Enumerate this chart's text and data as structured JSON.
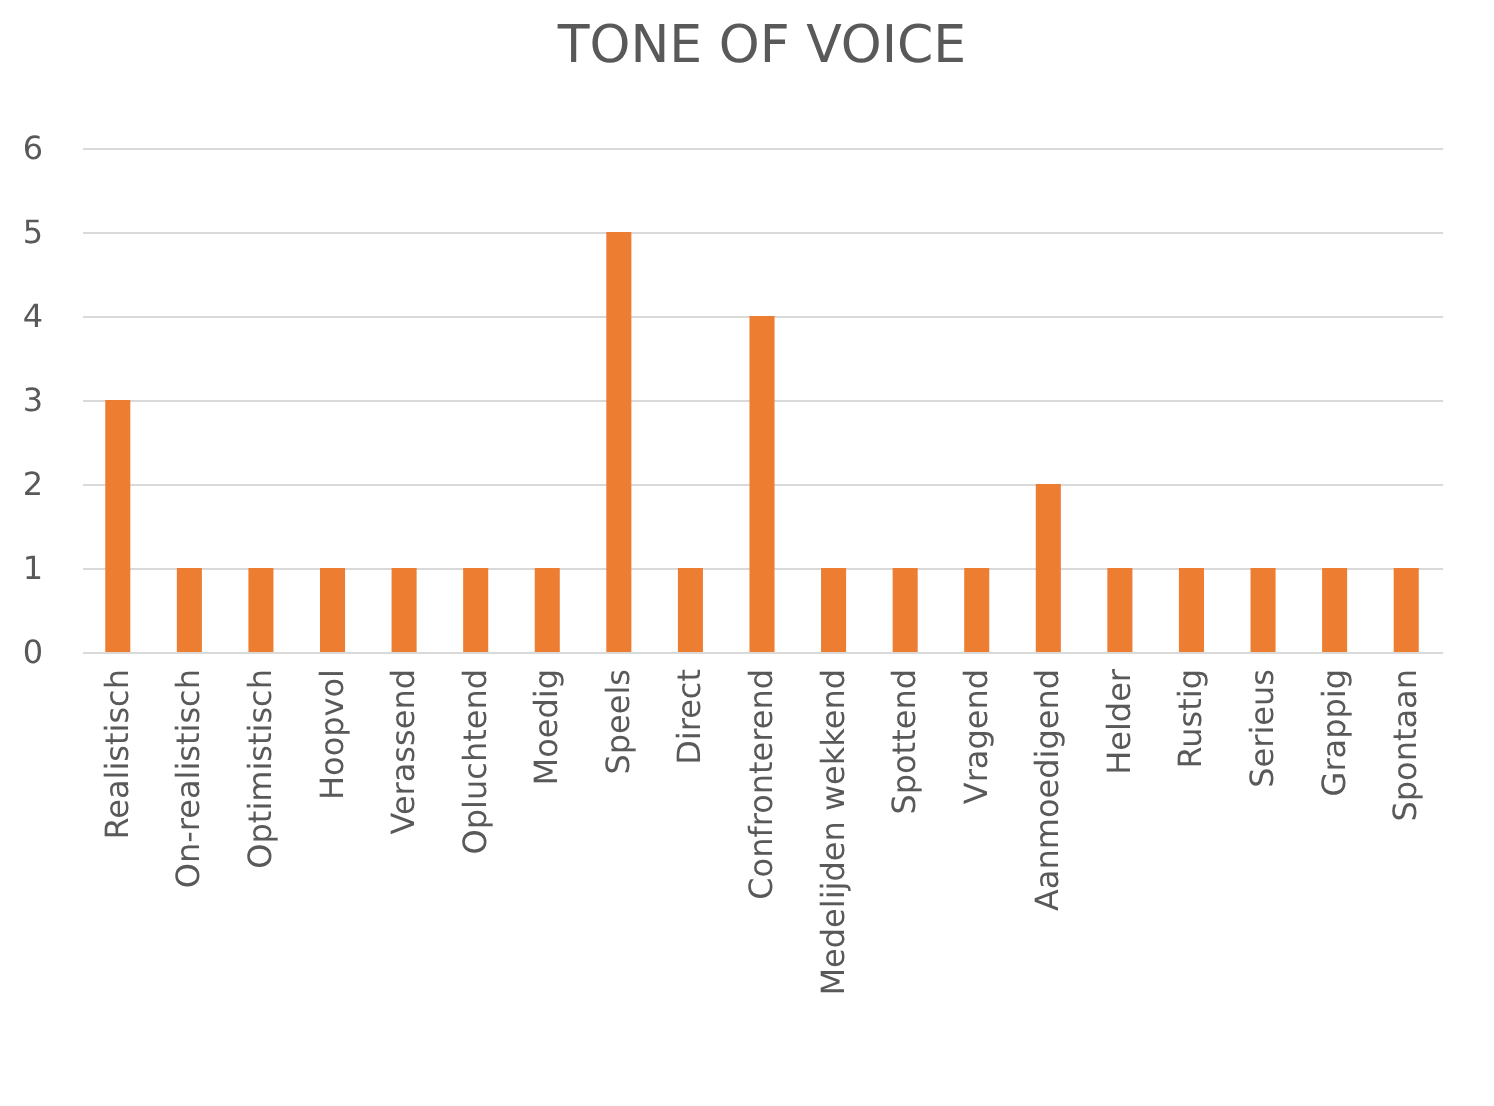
{
  "chart_data": {
    "type": "bar",
    "title": "TONE OF VOICE",
    "categories": [
      "Realistisch",
      "On-realistisch",
      "Optimistisch",
      "Hoopvol",
      "Verassend",
      "Opluchtend",
      "Moedig",
      "Speels",
      "Direct",
      "Confronterend",
      "Medelijden wekkend",
      "Spottend",
      "Vragend",
      "Aanmoedigend",
      "Helder",
      "Rustig",
      "Serieus",
      "Grappig",
      "Spontaan"
    ],
    "values": [
      3,
      1,
      1,
      1,
      1,
      1,
      1,
      5,
      1,
      4,
      1,
      1,
      1,
      2,
      1,
      1,
      1,
      1,
      1
    ],
    "color": "#ed7d31",
    "ylim": [
      0,
      6
    ],
    "yticks": [
      0,
      1,
      2,
      3,
      4,
      5,
      6
    ],
    "grid": "y"
  }
}
